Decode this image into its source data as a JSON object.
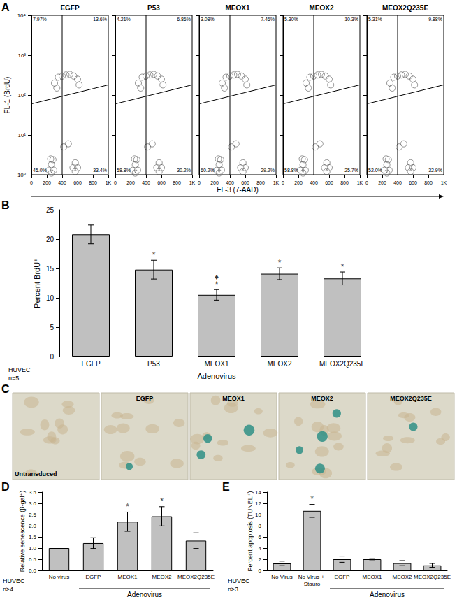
{
  "chart_data": [
    {
      "panel": "A",
      "type": "scatter",
      "title": "EGFP",
      "ylabel": "FL-1 (BrdU)",
      "xlabel": "FL-3 (7-AAD)",
      "log": "y",
      "grid": false,
      "xlim": [
        0,
        1000
      ],
      "xticks": [
        0,
        200,
        400,
        600,
        800,
        {
          "value": 1000,
          "label": "1K"
        }
      ],
      "ylim": [
        1,
        10000
      ],
      "yticks": [
        {
          "value": 1,
          "label": "10⁰"
        },
        {
          "value": 10,
          "label": "10¹"
        },
        {
          "value": 100,
          "label": "10²"
        },
        {
          "value": 1000,
          "label": "10³"
        },
        {
          "value": 10000,
          "label": "10⁴"
        }
      ],
      "x": [
        230,
        260,
        290,
        260,
        250,
        280,
        540,
        570,
        600,
        570,
        300,
        350,
        400,
        450,
        500,
        550,
        600,
        620,
        330,
        420,
        480
      ],
      "values": [
        1.3,
        1.8,
        1.3,
        1.1,
        2.5,
        2.4,
        1.5,
        2,
        1.5,
        1.2,
        200,
        280,
        300,
        320,
        330,
        300,
        250,
        180,
        150,
        5,
        6
      ],
      "color": "#555555",
      "marker": "circle",
      "gates": {
        "vertical": 400,
        "horizontal": [
          [
            0,
            60
          ],
          [
            1000,
            180
          ]
        ]
      },
      "quadrants": {
        "upper_left": "7.97%",
        "upper_right": "13.6%",
        "lower_left": "45.0%",
        "lower_right": "33.4%"
      }
    },
    {
      "type": "scatter",
      "title": "P53",
      "log": "y",
      "grid": false,
      "tick_labels": "x",
      "xlim": [
        0,
        1000
      ],
      "xticks": [
        0,
        200,
        400,
        600,
        800,
        {
          "value": 1000,
          "label": "1K"
        }
      ],
      "ylim": [
        1,
        10000
      ],
      "yticks": [
        {
          "value": 1,
          "label": "10⁰"
        },
        {
          "value": 10,
          "label": "10¹"
        },
        {
          "value": 100,
          "label": "10²"
        },
        {
          "value": 1000,
          "label": "10³"
        },
        {
          "value": 10000,
          "label": "10⁴"
        }
      ],
      "x": [
        230,
        260,
        290,
        260,
        250,
        280,
        540,
        570,
        600,
        570,
        300,
        350,
        400,
        450,
        500,
        550,
        600,
        620,
        330,
        420,
        480
      ],
      "values": [
        1.3,
        1.8,
        1.3,
        1.1,
        2.5,
        2.4,
        1.5,
        2,
        1.5,
        1.2,
        200,
        280,
        300,
        320,
        330,
        300,
        250,
        180,
        150,
        5,
        6
      ],
      "color": "#555555",
      "marker": "circle",
      "gates": {
        "vertical": 400,
        "horizontal": [
          [
            0,
            60
          ],
          [
            1000,
            180
          ]
        ]
      },
      "quadrants": {
        "upper_left": "4.21%",
        "upper_right": "6.86%",
        "lower_left": "58.8%",
        "lower_right": "30.2%"
      }
    },
    {
      "type": "scatter",
      "title": "MEOX1",
      "log": "y",
      "grid": false,
      "tick_labels": "x",
      "xlim": [
        0,
        1000
      ],
      "xticks": [
        0,
        200,
        400,
        600,
        800,
        {
          "value": 1000,
          "label": "1K"
        }
      ],
      "ylim": [
        1,
        10000
      ],
      "yticks": [
        {
          "value": 1,
          "label": "10⁰"
        },
        {
          "value": 10,
          "label": "10¹"
        },
        {
          "value": 100,
          "label": "10²"
        },
        {
          "value": 1000,
          "label": "10³"
        },
        {
          "value": 10000,
          "label": "10⁴"
        }
      ],
      "x": [
        230,
        260,
        290,
        260,
        250,
        280,
        540,
        570,
        600,
        570,
        300,
        350,
        400,
        450,
        500,
        550,
        600,
        620,
        330,
        420,
        480
      ],
      "values": [
        1.3,
        1.8,
        1.3,
        1.1,
        2.5,
        2.4,
        1.5,
        2,
        1.5,
        1.2,
        200,
        280,
        300,
        320,
        330,
        300,
        250,
        180,
        150,
        5,
        6
      ],
      "color": "#555555",
      "marker": "circle",
      "gates": {
        "vertical": 400,
        "horizontal": [
          [
            0,
            60
          ],
          [
            1000,
            180
          ]
        ]
      },
      "quadrants": {
        "upper_left": "3.08%",
        "upper_right": "7.46%",
        "lower_left": "60.2%",
        "lower_right": "29.2%"
      }
    },
    {
      "type": "scatter",
      "title": "MEOX2",
      "log": "y",
      "grid": false,
      "tick_labels": "x",
      "xlim": [
        0,
        1000
      ],
      "xticks": [
        0,
        200,
        400,
        600,
        800,
        {
          "value": 1000,
          "label": "1K"
        }
      ],
      "ylim": [
        1,
        10000
      ],
      "yticks": [
        {
          "value": 1,
          "label": "10⁰"
        },
        {
          "value": 10,
          "label": "10¹"
        },
        {
          "value": 100,
          "label": "10²"
        },
        {
          "value": 1000,
          "label": "10³"
        },
        {
          "value": 10000,
          "label": "10⁴"
        }
      ],
      "x": [
        230,
        260,
        290,
        260,
        250,
        280,
        540,
        570,
        600,
        570,
        300,
        350,
        400,
        450,
        500,
        550,
        600,
        620,
        330,
        420,
        480
      ],
      "values": [
        1.3,
        1.8,
        1.3,
        1.1,
        2.5,
        2.4,
        1.5,
        2,
        1.5,
        1.2,
        200,
        280,
        300,
        320,
        330,
        300,
        250,
        180,
        150,
        5,
        6
      ],
      "color": "#555555",
      "marker": "circle",
      "gates": {
        "vertical": 400,
        "horizontal": [
          [
            0,
            60
          ],
          [
            1000,
            180
          ]
        ]
      },
      "quadrants": {
        "upper_left": "5.30%",
        "upper_right": "10.3%",
        "lower_left": "58.8%",
        "lower_right": "25.7%"
      }
    },
    {
      "type": "scatter",
      "title": "MEOX2Q235E",
      "log": "y",
      "grid": false,
      "tick_labels": "x",
      "xlim": [
        0,
        1000
      ],
      "xticks": [
        0,
        200,
        400,
        600,
        800,
        {
          "value": 1000,
          "label": "1K"
        }
      ],
      "ylim": [
        1,
        10000
      ],
      "yticks": [
        {
          "value": 1,
          "label": "10⁰"
        },
        {
          "value": 10,
          "label": "10¹"
        },
        {
          "value": 100,
          "label": "10²"
        },
        {
          "value": 1000,
          "label": "10³"
        },
        {
          "value": 10000,
          "label": "10⁴"
        }
      ],
      "x": [
        230,
        260,
        290,
        260,
        250,
        280,
        540,
        570,
        600,
        570,
        300,
        350,
        400,
        450,
        500,
        550,
        600,
        620,
        330,
        420,
        480
      ],
      "values": [
        1.3,
        1.8,
        1.3,
        1.1,
        2.5,
        2.4,
        1.5,
        2,
        1.5,
        1.2,
        200,
        280,
        300,
        320,
        330,
        300,
        250,
        180,
        150,
        5,
        6
      ],
      "color": "#555555",
      "marker": "circle",
      "gates": {
        "vertical": 400,
        "horizontal": [
          [
            0,
            60
          ],
          [
            1000,
            180
          ]
        ]
      },
      "quadrants": {
        "upper_left": "5.31%",
        "upper_right": "9.88%",
        "lower_left": "52.0%",
        "lower_right": "32.9%"
      }
    },
    {
      "panel": "B",
      "type": "bar",
      "ylabel": "Percent BrdU⁺",
      "grid": false,
      "color": "#c0c0c0",
      "categories": [
        "EGFP",
        "P53",
        "MEOX1",
        "MEOX2",
        "MEOX2Q235E"
      ],
      "values": [
        20.8,
        14.8,
        10.5,
        14.1,
        13.3
      ],
      "errors": [
        1.6,
        1.6,
        0.9,
        1.0,
        1.1
      ],
      "ylim": [
        0,
        25
      ],
      "yticks": [
        0,
        5,
        10,
        15,
        20,
        25
      ],
      "annotations": [
        {
          "category": "P53",
          "text": "*"
        },
        {
          "category": "MEOX1",
          "text": "*"
        },
        {
          "category": "MEOX2",
          "text": "*"
        },
        {
          "category": "MEOX2Q235E",
          "text": "*"
        },
        {
          "category": "MEOX1",
          "text": "♦"
        }
      ],
      "group": {
        "text": "Adenovirus",
        "from": "EGFP",
        "to": "MEOX2Q235E"
      },
      "notes": [
        "HUVEC",
        "n=5"
      ]
    },
    {
      "panel": "D",
      "type": "bar",
      "ylabel": "Relative senescence (β-gal⁺)",
      "grid": false,
      "color": "#c0c0c0",
      "categories": [
        "No virus",
        "EGFP",
        "MEOX1",
        "MEOX2",
        "MEOX2Q235E"
      ],
      "values": [
        1.0,
        1.22,
        2.18,
        2.42,
        1.33
      ],
      "errors": [
        null,
        0.24,
        0.43,
        0.43,
        0.35
      ],
      "ylim": [
        0,
        3.5
      ],
      "yticks": [
        {
          "value": 0,
          "label": "0.0"
        },
        0.5,
        {
          "value": 1,
          "label": "1.0"
        },
        1.5,
        {
          "value": 2,
          "label": "2.0"
        },
        2.5,
        {
          "value": 3,
          "label": "3.0"
        },
        3.5
      ],
      "annotations": [
        {
          "category": "MEOX1",
          "text": "*"
        },
        {
          "category": "MEOX2",
          "text": "*"
        }
      ],
      "group": {
        "text": "Adenovirus",
        "from": "EGFP",
        "to": "MEOX2Q235E"
      },
      "notes": [
        "HUVEC",
        "n≥4"
      ]
    },
    {
      "panel": "E",
      "type": "bar",
      "ylabel": "Percent apoptosis (TUNEL⁺)",
      "grid": false,
      "color": "#c0c0c0",
      "categories": [
        "No Virus",
        "No Virus + Stauro",
        "EGFP",
        "MEOX1",
        "MEOX2",
        "MEOX2Q235E"
      ],
      "values": [
        1.25,
        10.65,
        2.0,
        2.0,
        1.3,
        0.9
      ],
      "errors": [
        0.4,
        1.15,
        0.55,
        0.1,
        0.45,
        0.35
      ],
      "ylim": [
        0,
        14
      ],
      "yticks": [
        0,
        2,
        4,
        6,
        8,
        10,
        12,
        14
      ],
      "annotations": [
        {
          "category": "No Virus + Stauro",
          "text": "*"
        }
      ],
      "group": {
        "text": "Adenovirus",
        "from": "EGFP",
        "to": "MEOX2Q235E"
      },
      "notes": [
        "HUVEC",
        "n≥3"
      ]
    }
  ],
  "microscopy": {
    "panel": "C",
    "labels": [
      "Untransduced",
      "EGFP",
      "MEOX1",
      "MEOX2",
      "MEOX2Q235E"
    ]
  }
}
